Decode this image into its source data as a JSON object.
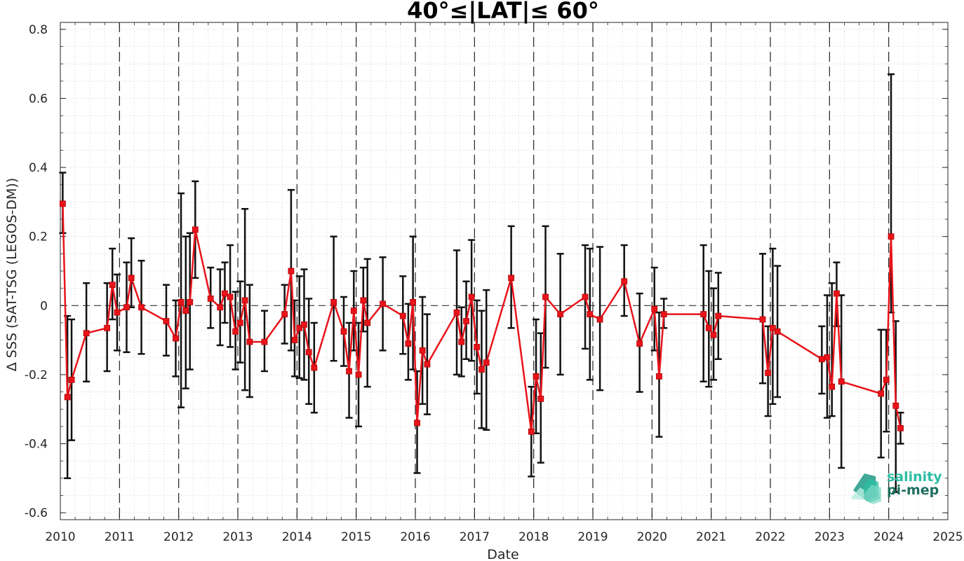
{
  "chart_data": {
    "type": "line",
    "title": "40°≤|LAT|≤ 60°",
    "xlabel": "Date",
    "ylabel": "Δ SSS (SAT-TSG (LEGOS-DM))",
    "xlim": [
      2010,
      2025
    ],
    "ylim": [
      -0.62,
      0.82
    ],
    "xticks": [
      2010,
      2011,
      2012,
      2013,
      2014,
      2015,
      2016,
      2017,
      2018,
      2019,
      2020,
      2021,
      2022,
      2023,
      2024,
      2025
    ],
    "xtick_labels": [
      "2010",
      "2011",
      "2012",
      "2013",
      "2014",
      "2015",
      "2016",
      "2017",
      "2018",
      "2019",
      "2020",
      "2021",
      "2022",
      "2023",
      "2024",
      "2025"
    ],
    "yticks": [
      -0.6,
      -0.4,
      -0.2,
      0,
      0.2,
      0.4,
      0.6,
      0.8
    ],
    "ytick_labels": [
      "-0.6",
      "-0.4",
      "-0.2",
      "0",
      "0.2",
      "0.4",
      "0.6",
      "0.8"
    ],
    "year_markers": [
      2011,
      2012,
      2013,
      2014,
      2015,
      2016,
      2017,
      2018,
      2019,
      2020,
      2021,
      2022,
      2023,
      2024
    ],
    "zero_line": true,
    "grid": "minor dotted",
    "colors": {
      "line": "#e8141b",
      "errorbar": "#111111",
      "reference": "#333333"
    },
    "series": [
      {
        "x": [
          2010.04,
          2010.12,
          2010.19,
          2010.44,
          2010.79,
          2010.88,
          2010.96,
          2011.12,
          2011.2,
          2011.37,
          2011.79,
          2011.95,
          2012.04,
          2012.12,
          2012.19,
          2012.28,
          2012.54,
          2012.7,
          2012.78,
          2012.87,
          2012.96,
          2013.04,
          2013.12,
          2013.2,
          2013.45,
          2013.79,
          2013.9,
          2013.96,
          2014.04,
          2014.12,
          2014.2,
          2014.29,
          2014.62,
          2014.79,
          2014.88,
          2014.96,
          2015.04,
          2015.12,
          2015.19,
          2015.45,
          2015.79,
          2015.88,
          2015.96,
          2016.03,
          2016.12,
          2016.2,
          2016.7,
          2016.78,
          2016.86,
          2016.95,
          2017.04,
          2017.12,
          2017.2,
          2017.62,
          2017.96,
          2018.04,
          2018.12,
          2018.2,
          2018.45,
          2018.87,
          2018.95,
          2019.12,
          2019.53,
          2019.79,
          2020.04,
          2020.12,
          2020.2,
          2020.87,
          2020.96,
          2021.04,
          2021.12,
          2021.87,
          2021.96,
          2022.04,
          2022.12,
          2022.87,
          2022.96,
          2023.04,
          2023.12,
          2023.2,
          2023.87,
          2023.96,
          2024.04,
          2024.12,
          2024.2
        ],
        "y": [
          0.295,
          -0.265,
          -0.215,
          -0.08,
          -0.065,
          0.06,
          -0.02,
          -0.005,
          0.08,
          -0.005,
          -0.045,
          -0.095,
          0.01,
          -0.015,
          0.01,
          0.22,
          0.02,
          -0.005,
          0.035,
          0.025,
          -0.075,
          -0.05,
          0.015,
          -0.105,
          -0.105,
          -0.025,
          0.1,
          -0.1,
          -0.065,
          -0.055,
          -0.135,
          -0.18,
          0.01,
          -0.075,
          -0.19,
          -0.015,
          -0.2,
          0.015,
          -0.05,
          0.005,
          -0.03,
          -0.11,
          0.01,
          -0.34,
          -0.13,
          -0.17,
          -0.02,
          -0.105,
          -0.045,
          0.025,
          -0.12,
          -0.185,
          -0.165,
          0.08,
          -0.365,
          -0.205,
          -0.27,
          0.025,
          -0.025,
          0.025,
          -0.025,
          -0.04,
          0.07,
          -0.11,
          -0.01,
          -0.205,
          -0.025,
          -0.025,
          -0.065,
          -0.085,
          -0.03,
          -0.04,
          -0.195,
          -0.065,
          -0.075,
          -0.155,
          -0.15,
          -0.235,
          0.035,
          -0.22,
          -0.255,
          -0.215,
          0.2,
          -0.29,
          -0.355
        ],
        "err_lo": [
          0.21,
          -0.5,
          -0.39,
          -0.22,
          -0.19,
          -0.04,
          -0.13,
          -0.135,
          -0.005,
          -0.14,
          -0.145,
          -0.205,
          -0.295,
          -0.24,
          -0.185,
          0.08,
          -0.065,
          -0.115,
          -0.05,
          -0.12,
          -0.185,
          -0.165,
          -0.245,
          -0.265,
          -0.19,
          -0.11,
          -0.13,
          -0.205,
          -0.21,
          -0.215,
          -0.285,
          -0.31,
          -0.16,
          -0.175,
          -0.325,
          -0.13,
          -0.35,
          -0.075,
          -0.235,
          -0.13,
          -0.14,
          -0.215,
          -0.185,
          -0.485,
          -0.285,
          -0.315,
          -0.2,
          -0.205,
          -0.155,
          -0.16,
          -0.255,
          -0.355,
          -0.36,
          -0.065,
          -0.495,
          -0.37,
          -0.455,
          -0.18,
          -0.2,
          -0.125,
          -0.215,
          -0.245,
          -0.03,
          -0.25,
          -0.13,
          -0.38,
          -0.065,
          -0.22,
          -0.235,
          -0.215,
          -0.155,
          -0.225,
          -0.32,
          -0.285,
          -0.265,
          -0.255,
          -0.325,
          -0.32,
          -0.06,
          -0.47,
          -0.44,
          -0.365,
          -0.02,
          -0.54,
          -0.4
        ],
        "err_hi": [
          0.385,
          -0.03,
          -0.04,
          0.065,
          0.065,
          0.165,
          0.09,
          0.125,
          0.195,
          0.13,
          0.06,
          0.015,
          0.325,
          0.2,
          0.21,
          0.36,
          0.11,
          0.105,
          0.125,
          0.175,
          0.04,
          0.07,
          0.28,
          0.06,
          -0.015,
          0.06,
          0.335,
          0.015,
          0.085,
          0.105,
          0.02,
          -0.05,
          0.2,
          0.025,
          -0.05,
          0.1,
          -0.05,
          0.11,
          0.135,
          0.14,
          0.085,
          0.005,
          0.2,
          -0.19,
          0.025,
          -0.025,
          0.16,
          -0.005,
          0.07,
          0.19,
          0.015,
          -0.015,
          0.045,
          0.23,
          -0.235,
          -0.04,
          -0.08,
          0.23,
          0.15,
          0.175,
          0.165,
          0.17,
          0.175,
          0.035,
          0.11,
          -0.02,
          0.02,
          0.175,
          0.1,
          0.05,
          0.095,
          0.15,
          -0.06,
          0.165,
          0.115,
          -0.06,
          0.03,
          0.065,
          0.125,
          0.03,
          -0.07,
          -0.07,
          0.67,
          -0.045,
          -0.31
        ]
      }
    ]
  },
  "logo": {
    "line1": "salinity",
    "line2": "pi-mep"
  }
}
